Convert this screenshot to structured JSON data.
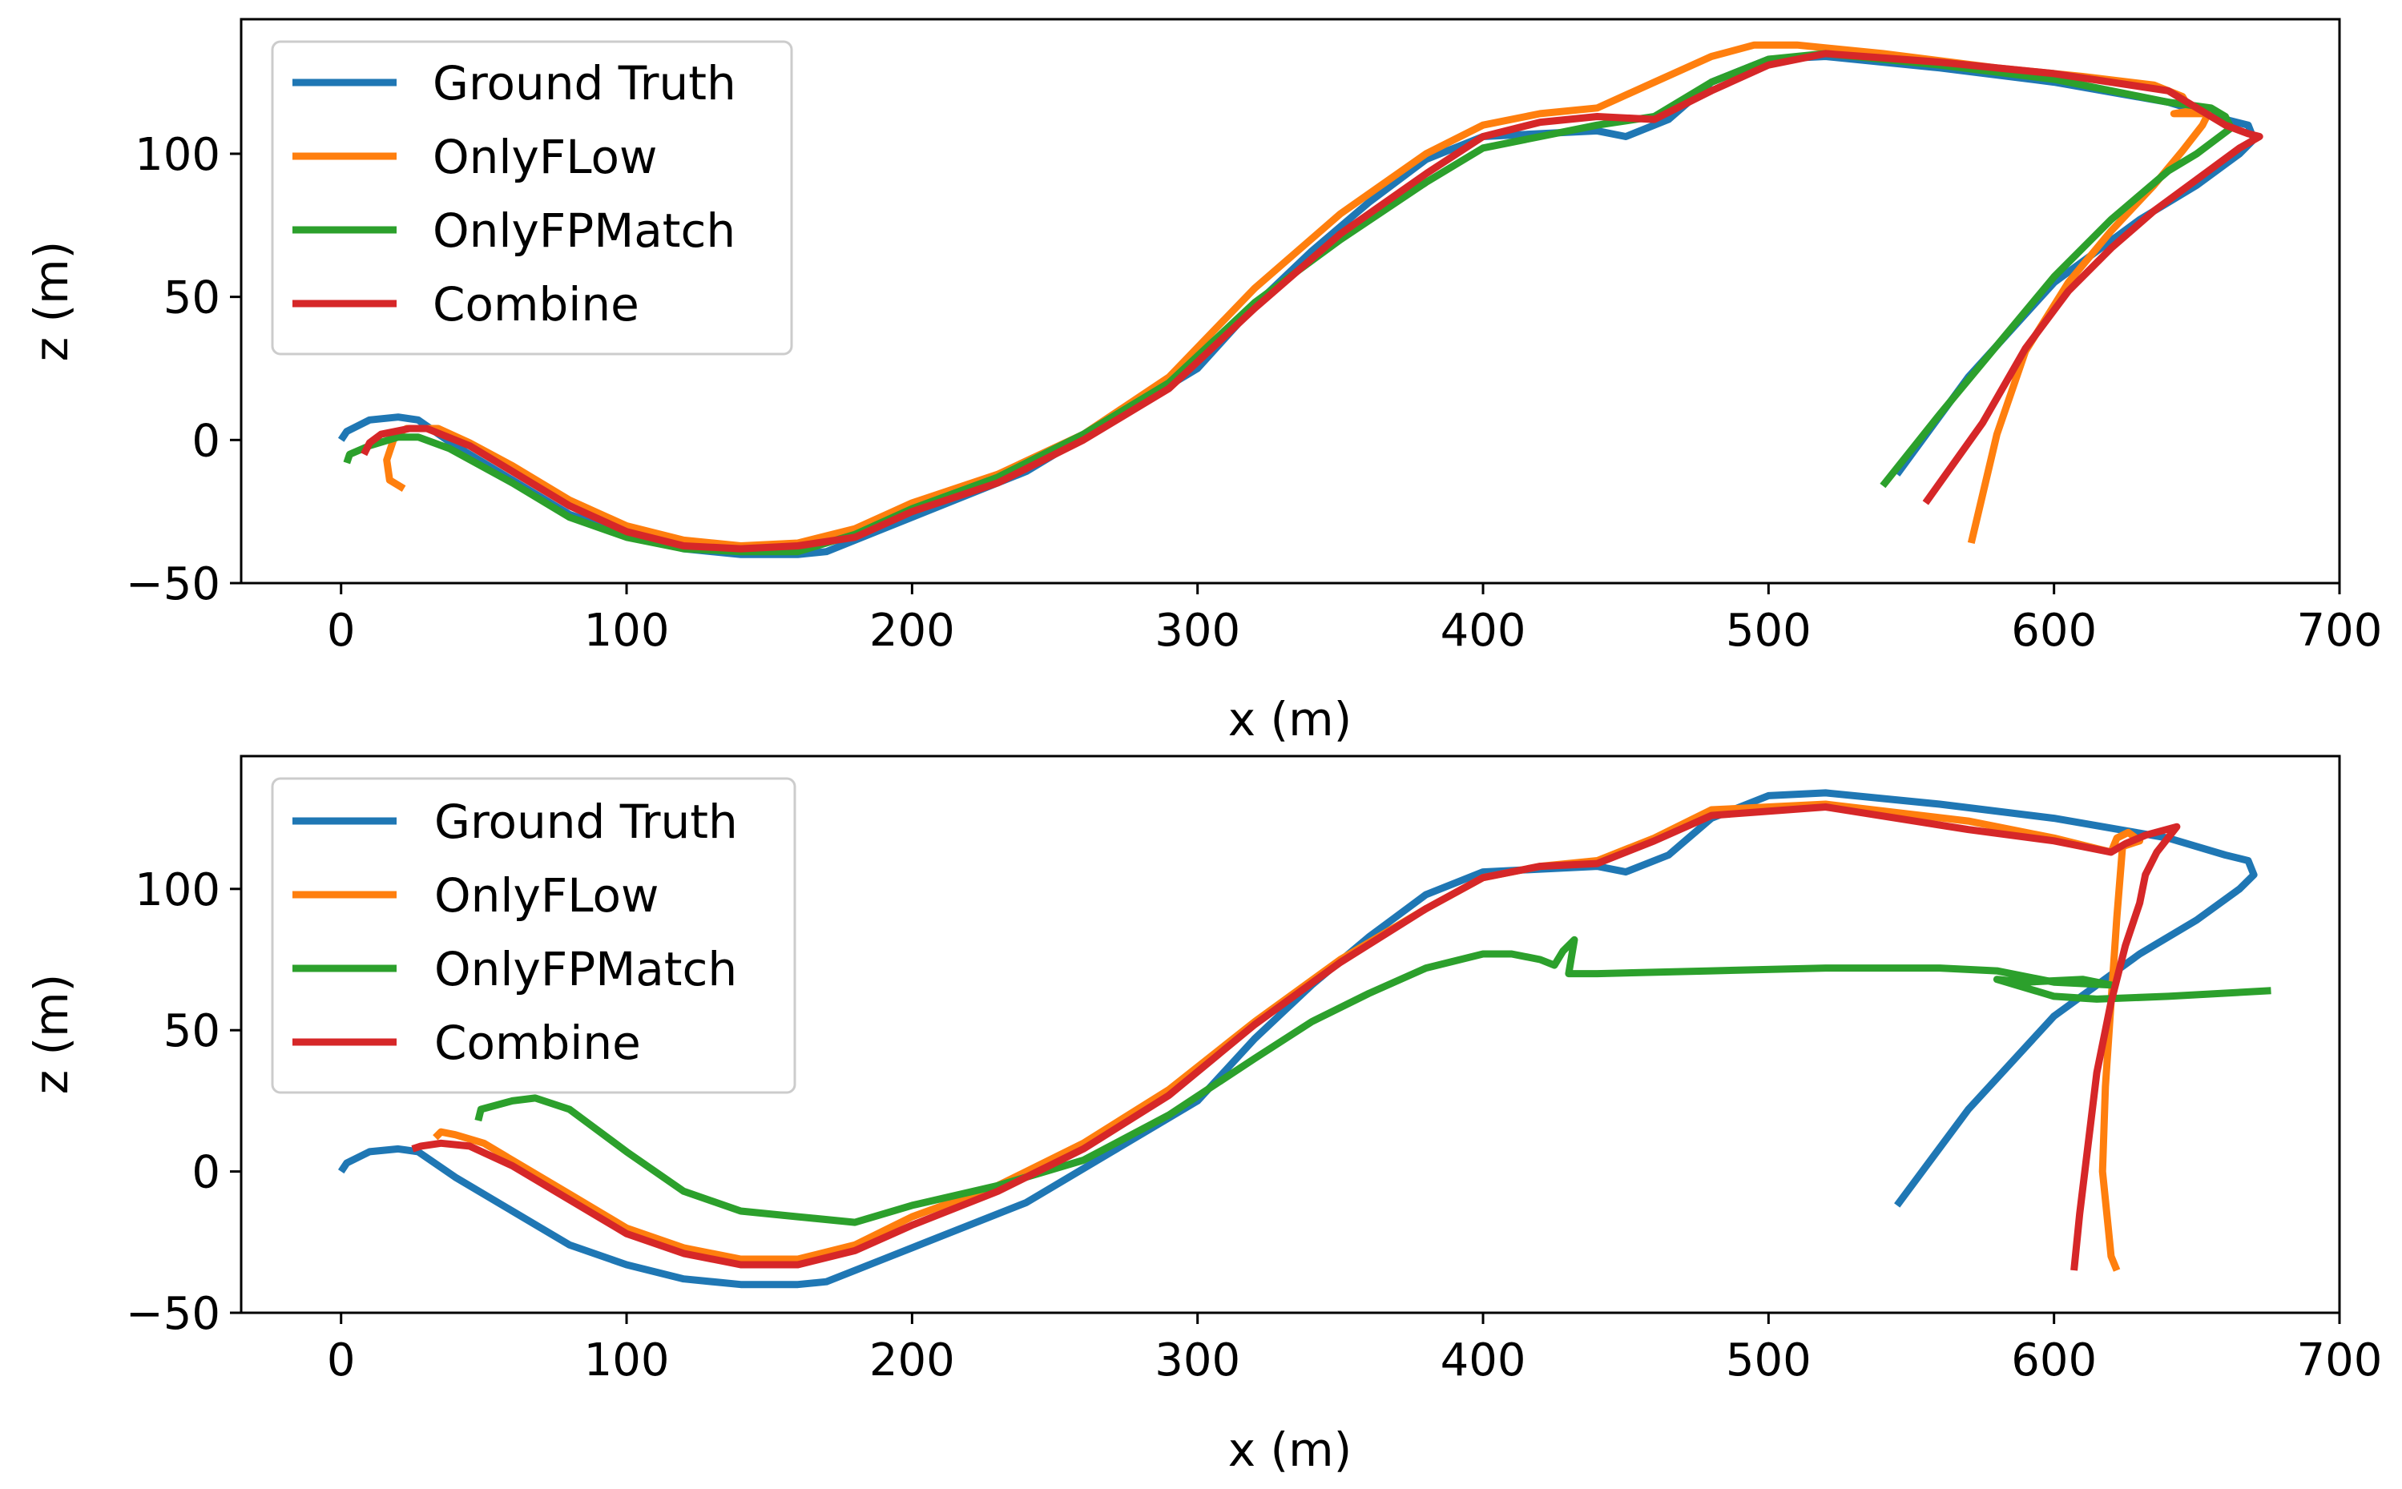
{
  "colors": {
    "ground_truth": "#1f77b4",
    "onlyflow": "#ff7f0e",
    "onlyfpmatch": "#2ca02c",
    "combine": "#d62728"
  },
  "chart_data": [
    {
      "type": "line",
      "xlabel": "x (m)",
      "ylabel": "z (m)",
      "xlim": [
        -35,
        700
      ],
      "ylim": [
        -50,
        147
      ],
      "xticks": [
        0,
        100,
        200,
        300,
        400,
        500,
        600,
        700
      ],
      "yticks": [
        -50,
        0,
        50,
        100
      ],
      "legend_position": "top-left",
      "series": [
        {
          "name": "Ground Truth",
          "color_key": "ground_truth",
          "x": [
            0,
            2,
            10,
            20,
            27,
            40,
            60,
            80,
            100,
            120,
            140,
            160,
            170,
            190,
            210,
            240,
            270,
            300,
            320,
            340,
            360,
            380,
            400,
            420,
            440,
            450,
            465,
            480,
            500,
            520,
            560,
            600,
            640,
            660,
            668,
            670,
            665,
            650,
            630,
            600,
            570,
            545
          ],
          "y": [
            0,
            3,
            7,
            8,
            7,
            -2,
            -14,
            -26,
            -33,
            -38,
            -40,
            -40,
            -39,
            -31,
            -23,
            -11,
            7,
            25,
            47,
            66,
            83,
            98,
            106,
            107,
            108,
            106,
            112,
            125,
            133,
            134,
            130,
            125,
            118,
            112,
            110,
            105,
            100,
            89,
            77,
            55,
            22,
            -12
          ]
        },
        {
          "name": "OnlyFLow",
          "color_key": "onlyflow",
          "x": [
            22,
            17,
            16,
            19,
            23,
            34,
            45,
            60,
            80,
            100,
            120,
            140,
            160,
            180,
            200,
            230,
            260,
            290,
            320,
            350,
            380,
            400,
            420,
            440,
            460,
            480,
            495,
            510,
            540,
            580,
            610,
            635,
            645,
            648,
            642,
            654,
            652,
            645,
            635,
            620,
            605,
            590,
            580,
            571
          ],
          "y": [
            -17,
            -14,
            -7,
            2,
            4,
            4,
            -1,
            -9,
            -21,
            -30,
            -35,
            -37,
            -36,
            -31,
            -22,
            -12,
            2,
            22,
            53,
            79,
            100,
            110,
            114,
            116,
            125,
            134,
            138,
            138,
            135,
            130,
            127,
            124,
            120,
            115,
            114,
            114,
            110,
            101,
            89,
            73,
            55,
            31,
            2,
            -36
          ]
        },
        {
          "name": "OnlyFPMatch",
          "color_key": "onlyfpmatch",
          "x": [
            2,
            3,
            10,
            20,
            27,
            38,
            60,
            80,
            100,
            120,
            140,
            160,
            180,
            200,
            230,
            260,
            290,
            320,
            350,
            380,
            400,
            420,
            440,
            460,
            480,
            500,
            520,
            560,
            600,
            640,
            655,
            660,
            662,
            650,
            640,
            620,
            600,
            580,
            560,
            540
          ],
          "y": [
            -8,
            -5,
            -2,
            1,
            1,
            -3,
            -15,
            -27,
            -34,
            -38,
            -39,
            -39,
            -33,
            -24,
            -13,
            2,
            20,
            48,
            70,
            90,
            102,
            106,
            110,
            113,
            125,
            133,
            135,
            131,
            126,
            118,
            116,
            113,
            109,
            100,
            94,
            77,
            57,
            33,
            9,
            -16
          ]
        },
        {
          "name": "Combine",
          "color_key": "combine",
          "x": [
            8,
            10,
            14,
            24,
            30,
            45,
            60,
            80,
            100,
            120,
            140,
            160,
            180,
            200,
            230,
            260,
            290,
            320,
            350,
            380,
            400,
            420,
            440,
            460,
            480,
            500,
            520,
            560,
            600,
            640,
            660,
            668,
            672,
            665,
            650,
            635,
            620,
            605,
            590,
            575,
            555
          ],
          "y": [
            -5,
            -1,
            2,
            4,
            4,
            -2,
            -11,
            -23,
            -32,
            -37,
            -38,
            -37,
            -34,
            -25,
            -15,
            0,
            18,
            46,
            72,
            93,
            106,
            111,
            113,
            112,
            122,
            131,
            135,
            132,
            128,
            122,
            110,
            107,
            106,
            102,
            91,
            80,
            67,
            52,
            32,
            6,
            -22
          ]
        }
      ]
    },
    {
      "type": "line",
      "xlabel": "x (m)",
      "ylabel": "z (m)",
      "xlim": [
        -35,
        700
      ],
      "ylim": [
        -50,
        147
      ],
      "xticks": [
        0,
        100,
        200,
        300,
        400,
        500,
        600,
        700
      ],
      "yticks": [
        -50,
        0,
        50,
        100
      ],
      "legend_position": "top-left",
      "series": [
        {
          "name": "Ground Truth",
          "color_key": "ground_truth",
          "x": [
            0,
            2,
            10,
            20,
            27,
            40,
            60,
            80,
            100,
            120,
            140,
            160,
            170,
            190,
            210,
            240,
            270,
            300,
            320,
            340,
            360,
            380,
            400,
            420,
            440,
            450,
            465,
            480,
            500,
            520,
            560,
            600,
            640,
            660,
            668,
            670,
            665,
            650,
            630,
            600,
            570,
            545
          ],
          "y": [
            0,
            3,
            7,
            8,
            7,
            -2,
            -14,
            -26,
            -33,
            -38,
            -40,
            -40,
            -39,
            -31,
            -23,
            -11,
            7,
            25,
            47,
            66,
            83,
            98,
            106,
            107,
            108,
            106,
            112,
            125,
            133,
            134,
            130,
            125,
            118,
            112,
            110,
            105,
            100,
            89,
            77,
            55,
            22,
            -12
          ]
        },
        {
          "name": "OnlyFLow",
          "color_key": "onlyflow",
          "x": [
            33,
            35,
            40,
            50,
            60,
            80,
            100,
            120,
            140,
            160,
            180,
            200,
            230,
            260,
            290,
            320,
            350,
            380,
            400,
            420,
            440,
            460,
            480,
            520,
            570,
            600,
            620,
            622,
            626,
            630,
            624,
            622,
            620,
            618,
            617,
            619,
            620,
            622
          ],
          "y": [
            12,
            14,
            13,
            10,
            4,
            -8,
            -20,
            -27,
            -31,
            -31,
            -26,
            -16,
            -5,
            10,
            29,
            53,
            75,
            93,
            104,
            108,
            110,
            118,
            128,
            130,
            124,
            118,
            113,
            118,
            120,
            117,
            115,
            90,
            60,
            30,
            0,
            -20,
            -30,
            -35
          ]
        },
        {
          "name": "OnlyFPMatch",
          "color_key": "onlyfpmatch",
          "x": [
            48,
            49,
            60,
            68,
            80,
            100,
            120,
            140,
            160,
            180,
            200,
            230,
            260,
            290,
            320,
            340,
            360,
            380,
            400,
            410,
            420,
            425,
            428,
            432,
            430,
            440,
            480,
            520,
            560,
            580,
            600,
            620,
            610,
            590,
            580,
            600,
            615,
            640,
            676
          ],
          "y": [
            18,
            22,
            25,
            26,
            22,
            7,
            -7,
            -14,
            -16,
            -18,
            -12,
            -5,
            4,
            20,
            40,
            53,
            63,
            72,
            77,
            77,
            75,
            73,
            78,
            82,
            70,
            70,
            71,
            72,
            72,
            71,
            67,
            66,
            68,
            67,
            68,
            62,
            61,
            62,
            64
          ]
        },
        {
          "name": "Combine",
          "color_key": "combine",
          "x": [
            25,
            28,
            35,
            45,
            60,
            80,
            100,
            120,
            140,
            160,
            180,
            200,
            230,
            260,
            290,
            320,
            350,
            380,
            400,
            420,
            440,
            460,
            480,
            520,
            570,
            600,
            620,
            625,
            632,
            643,
            636,
            632,
            630,
            625,
            620,
            615,
            612,
            609,
            607
          ],
          "y": [
            8,
            9,
            10,
            9,
            2,
            -10,
            -22,
            -29,
            -33,
            -33,
            -28,
            -19,
            -7,
            8,
            27,
            52,
            74,
            93,
            104,
            108,
            109,
            117,
            126,
            129,
            121,
            117,
            113,
            116,
            119,
            122,
            113,
            105,
            95,
            80,
            60,
            35,
            10,
            -15,
            -35
          ]
        }
      ]
    }
  ]
}
